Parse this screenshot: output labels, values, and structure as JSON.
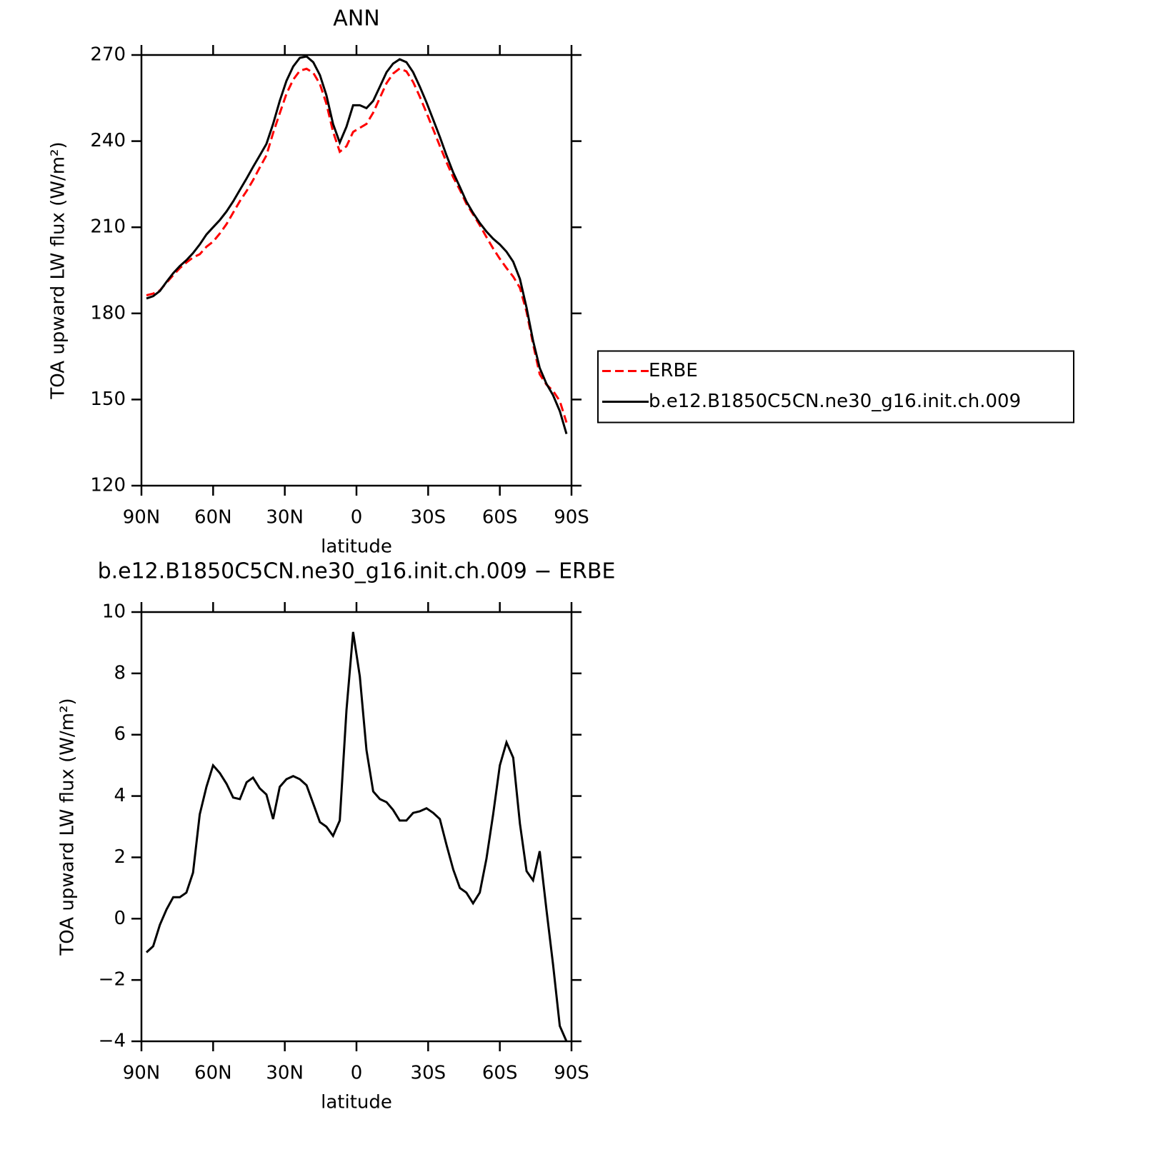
{
  "chart_data": [
    {
      "type": "line",
      "title": "ANN",
      "xlabel": "latitude",
      "ylabel": "TOA upward LW flux (W/m²)",
      "x": [
        87.9,
        85.1,
        82.3,
        79.5,
        76.7,
        73.9,
        71.2,
        68.4,
        65.6,
        62.8,
        60.0,
        57.2,
        54.4,
        51.6,
        48.8,
        46.0,
        43.3,
        40.5,
        37.7,
        34.9,
        32.1,
        29.3,
        26.5,
        23.7,
        20.9,
        18.1,
        15.3,
        12.6,
        9.8,
        7.0,
        4.2,
        1.4,
        -1.4,
        -4.2,
        -7.0,
        -9.8,
        -12.6,
        -15.3,
        -18.1,
        -20.9,
        -23.7,
        -26.5,
        -29.3,
        -32.1,
        -34.9,
        -37.7,
        -40.5,
        -43.3,
        -46.0,
        -48.8,
        -51.6,
        -54.4,
        -57.2,
        -60.0,
        -62.8,
        -65.6,
        -68.4,
        -71.2,
        -73.9,
        -76.7,
        -79.5,
        -82.3,
        -85.1,
        -87.9
      ],
      "series": [
        {
          "name": "ERBE",
          "color": "#ff0000",
          "linestyle": "dashed",
          "values": [
            186.3,
            186.9,
            188.0,
            190.7,
            193.3,
            195.8,
            197.7,
            199.5,
            200.6,
            203.2,
            205.0,
            207.8,
            211.1,
            215.1,
            219.1,
            222.6,
            226.4,
            230.8,
            235.0,
            242.8,
            249.7,
            256.5,
            261.4,
            264.5,
            265.2,
            263.8,
            259.9,
            253.0,
            243.3,
            236.3,
            238.2,
            243.2,
            244.6,
            246.0,
            249.9,
            255.1,
            260.2,
            263.5,
            265.3,
            264.3,
            260.6,
            255.5,
            249.9,
            244.1,
            238.3,
            232.6,
            227.4,
            223.0,
            218.2,
            214.5,
            210.7,
            206.6,
            202.6,
            199.0,
            195.8,
            192.8,
            188.9,
            180.5,
            169.3,
            158.8,
            155.2,
            153.0,
            149.5,
            142.0
          ]
        },
        {
          "name": "b.e12.B1850C5CN.ne30_g16.init.ch.009",
          "color": "#000000",
          "linestyle": "solid",
          "values": [
            185.2,
            186.0,
            187.8,
            191.0,
            194.0,
            196.5,
            198.5,
            201.0,
            204.0,
            207.5,
            210.0,
            212.5,
            215.5,
            219.0,
            223.0,
            227.0,
            231.0,
            235.0,
            239.0,
            246.0,
            254.0,
            261.0,
            266.0,
            269.0,
            269.5,
            267.5,
            263.0,
            256.0,
            246.0,
            239.5,
            245.0,
            252.5,
            252.5,
            251.5,
            254.0,
            259.0,
            264.0,
            267.0,
            268.5,
            267.5,
            264.0,
            259.0,
            253.5,
            247.5,
            241.5,
            235.0,
            229.0,
            224.0,
            219.0,
            215.0,
            211.5,
            208.5,
            206.0,
            204.0,
            201.5,
            198.0,
            192.0,
            182.0,
            170.5,
            161.0,
            155.5,
            151.5,
            146.0,
            138.0
          ]
        }
      ],
      "xlim": [
        90,
        -90
      ],
      "xticks": [
        {
          "value": 90,
          "label": "90N"
        },
        {
          "value": 60,
          "label": "60N"
        },
        {
          "value": 30,
          "label": "30N"
        },
        0,
        {
          "value": -30,
          "label": "30S"
        },
        {
          "value": -60,
          "label": "60S"
        },
        {
          "value": -90,
          "label": "90S"
        }
      ],
      "ylim": [
        120,
        270
      ],
      "yticks": [
        120,
        150,
        180,
        210,
        240,
        270
      ],
      "legend": "right"
    },
    {
      "type": "line",
      "title": "b.e12.B1850C5CN.ne30_g16.init.ch.009 − ERBE",
      "xlabel": "latitude",
      "ylabel": "TOA upward LW flux (W/m²)",
      "x": [
        87.9,
        85.1,
        82.3,
        79.5,
        76.7,
        73.9,
        71.2,
        68.4,
        65.6,
        62.8,
        60.0,
        57.2,
        54.4,
        51.6,
        48.8,
        46.0,
        43.3,
        40.5,
        37.7,
        34.9,
        32.1,
        29.3,
        26.5,
        23.7,
        20.9,
        18.1,
        15.3,
        12.6,
        9.8,
        7.0,
        4.2,
        1.4,
        -1.4,
        -4.2,
        -7.0,
        -9.8,
        -12.6,
        -15.3,
        -18.1,
        -20.9,
        -23.7,
        -26.5,
        -29.3,
        -32.1,
        -34.9,
        -37.7,
        -40.5,
        -43.3,
        -46.0,
        -48.8,
        -51.6,
        -54.4,
        -57.2,
        -60.0,
        -62.8,
        -65.6,
        -68.4,
        -71.2,
        -73.9,
        -76.7,
        -79.5,
        -82.3,
        -85.1,
        -87.9
      ],
      "values": [
        -1.1,
        -0.9,
        -0.2,
        0.3,
        0.7,
        0.7,
        0.85,
        1.5,
        3.4,
        4.3,
        5.0,
        4.75,
        4.4,
        3.95,
        3.9,
        4.45,
        4.6,
        4.25,
        4.05,
        3.25,
        4.3,
        4.55,
        4.65,
        4.55,
        4.35,
        3.75,
        3.15,
        3.0,
        2.7,
        3.2,
        6.8,
        9.35,
        7.9,
        5.5,
        4.15,
        3.9,
        3.8,
        3.55,
        3.2,
        3.2,
        3.45,
        3.5,
        3.6,
        3.45,
        3.25,
        2.4,
        1.6,
        1.0,
        0.85,
        0.5,
        0.85,
        1.95,
        3.4,
        5.0,
        5.75,
        5.25,
        3.1,
        1.55,
        1.25,
        2.2,
        0.3,
        -1.5,
        -3.5,
        -4.0
      ],
      "color": "#000000",
      "xlim": [
        90,
        -90
      ],
      "xticks": [
        {
          "value": 90,
          "label": "90N"
        },
        {
          "value": 60,
          "label": "60N"
        },
        {
          "value": 30,
          "label": "30N"
        },
        0,
        {
          "value": -30,
          "label": "30S"
        },
        {
          "value": -60,
          "label": "60S"
        },
        {
          "value": -90,
          "label": "90S"
        }
      ],
      "ylim": [
        -4,
        10
      ],
      "yticks": [
        {
          "value": -4,
          "label": "−4"
        },
        {
          "value": -2,
          "label": "−2"
        },
        0,
        2,
        4,
        6,
        8,
        10
      ]
    }
  ]
}
